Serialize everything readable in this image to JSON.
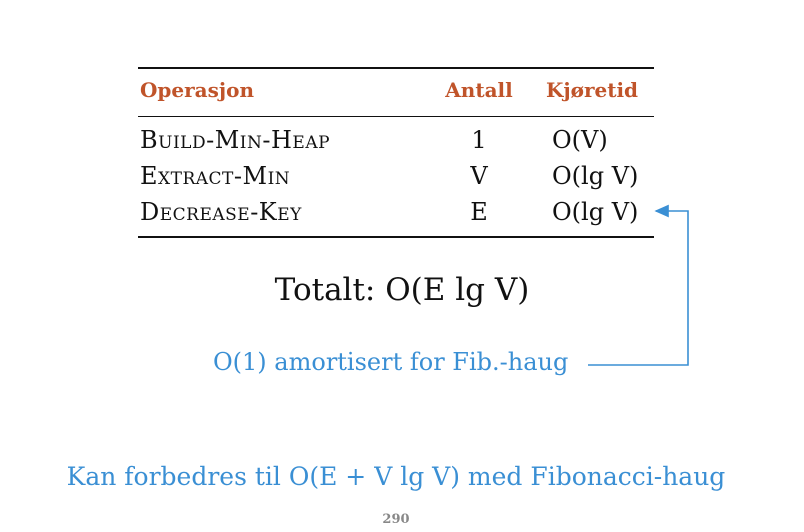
{
  "table": {
    "headers": [
      "Operasjon",
      "Antall",
      "Kjøretid"
    ],
    "rows": [
      {
        "operation": "Build-Min-Heap",
        "count": "1",
        "runtime": "O(V)"
      },
      {
        "operation": "Extract-Min",
        "count": "V",
        "runtime": "O(lg V)"
      },
      {
        "operation": "Decrease-Key",
        "count": "E",
        "runtime": "O(lg V)"
      }
    ]
  },
  "total": "Totalt:  O(E lg V)",
  "annotation": "O(1) amortisert for Fib.-haug",
  "bottom_note": "Kan forbedres til O(E + V lg V) med Fibonacci-haug",
  "page_number": "290",
  "colors": {
    "header": "#c0542a",
    "annotation": "#3a8fd4",
    "text": "#111111",
    "page_number": "#888888"
  }
}
